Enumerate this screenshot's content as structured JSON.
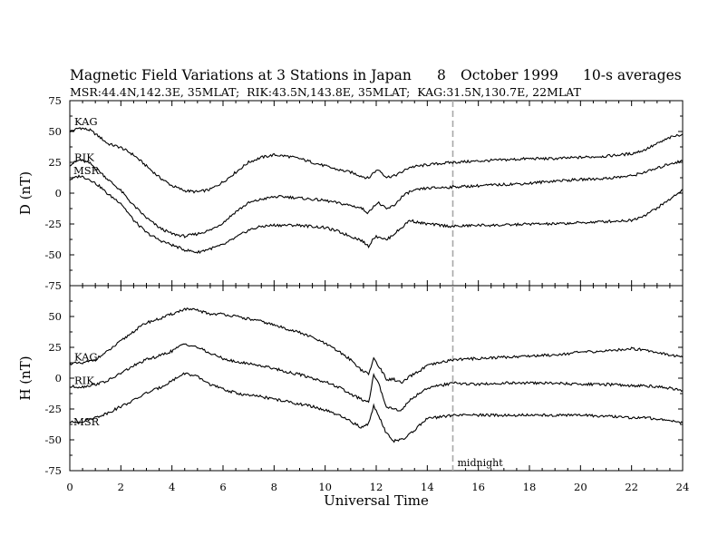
{
  "chart_data": {
    "type": "line",
    "title": {
      "main": "Magnetic Field Variations at 3 Stations in Japan",
      "day": "8",
      "month_year": "October 1999",
      "averaging": "10-s averages"
    },
    "subtitle": "MSR:44.4N,142.3E, 35MLAT;  RIK:43.5N,143.8E, 35MLAT;  KAG:31.5N,130.7E, 22MLAT",
    "xlabel": "Universal Time",
    "xlim": [
      0,
      24
    ],
    "xticks": [
      "0",
      "2",
      "4",
      "6",
      "8",
      "10",
      "12",
      "14",
      "16",
      "18",
      "20",
      "22",
      "24"
    ],
    "annotation": {
      "text": "midnight",
      "x": 15,
      "style": "dashed vertical line"
    },
    "grid": false,
    "color": "#000000",
    "panels": [
      {
        "ylabel": "D (nT)",
        "ylim": [
          -75,
          75
        ],
        "yticks": [
          "75",
          "50",
          "25",
          "0",
          "-25",
          "-50",
          "-75"
        ],
        "series": [
          {
            "name": "KAG",
            "x": [
              0,
              0.4,
              0.8,
              1.2,
              1.5,
              2,
              2.5,
              3,
              3.5,
              4,
              4.5,
              5,
              5.5,
              6,
              6.5,
              7,
              7.5,
              8,
              8.5,
              9,
              9.5,
              10,
              10.5,
              11,
              11.4,
              11.7,
              11.9,
              12.1,
              12.4,
              12.7,
              13,
              13.3,
              13.7,
              14,
              15,
              16,
              17,
              18,
              19,
              20,
              21,
              22,
              22.5,
              23,
              23.5,
              24
            ],
            "y": [
              50,
              53,
              51,
              45,
              40,
              37,
              31,
              22,
              13,
              6,
              2,
              1,
              3,
              9,
              17,
              25,
              29,
              31,
              30,
              28,
              25,
              22,
              19,
              17,
              14,
              12,
              17,
              19,
              13,
              14,
              17,
              21,
              22,
              23,
              25,
              26,
              27,
              28,
              28,
              29,
              30,
              32,
              35,
              40,
              45,
              48
            ]
          },
          {
            "name": "RIK",
            "x": [
              0,
              0.4,
              0.8,
              1.2,
              1.5,
              2,
              2.5,
              3,
              3.5,
              4,
              4.5,
              5,
              5.5,
              6,
              6.5,
              7,
              7.5,
              8,
              8.5,
              9,
              9.5,
              10,
              10.5,
              11,
              11.4,
              11.7,
              11.9,
              12.1,
              12.4,
              12.7,
              13,
              13.3,
              13.7,
              14,
              15,
              16,
              17,
              18,
              19,
              20,
              21,
              22,
              22.5,
              23,
              23.5,
              24
            ],
            "y": [
              23,
              27,
              24,
              17,
              11,
              2,
              -10,
              -20,
              -28,
              -33,
              -35,
              -33,
              -30,
              -24,
              -15,
              -8,
              -5,
              -3,
              -3,
              -4,
              -5,
              -6,
              -8,
              -10,
              -12,
              -16,
              -10,
              -8,
              -13,
              -10,
              -3,
              1,
              3,
              4,
              5,
              6,
              7,
              8,
              10,
              11,
              12,
              14,
              17,
              20,
              24,
              26
            ]
          },
          {
            "name": "MSR",
            "x": [
              0,
              0.4,
              0.8,
              1.2,
              1.5,
              2,
              2.5,
              3,
              3.5,
              4,
              4.5,
              5,
              5.5,
              6,
              6.5,
              7,
              7.5,
              8,
              8.5,
              9,
              9.5,
              10,
              10.5,
              11,
              11.4,
              11.7,
              11.9,
              12.1,
              12.4,
              12.7,
              13,
              13.3,
              13.7,
              14,
              15,
              16,
              17,
              18,
              19,
              20,
              21,
              22,
              22.5,
              23,
              23.5,
              24
            ],
            "y": [
              11,
              14,
              11,
              5,
              -1,
              -8,
              -22,
              -32,
              -38,
              -42,
              -46,
              -48,
              -45,
              -42,
              -36,
              -30,
              -27,
              -26,
              -26,
              -26,
              -27,
              -28,
              -31,
              -35,
              -38,
              -43,
              -36,
              -35,
              -38,
              -33,
              -28,
              -22,
              -24,
              -25,
              -27,
              -26,
              -26,
              -25,
              -25,
              -24,
              -23,
              -22,
              -18,
              -12,
              -5,
              3
            ]
          }
        ]
      },
      {
        "ylabel": "H (nT)",
        "ylim": [
          -75,
          75
        ],
        "yticks": [
          "75",
          "50",
          "25",
          "0",
          "-25",
          "-50",
          "-75"
        ],
        "series": [
          {
            "name": "KAG",
            "x": [
              0,
              0.5,
              1,
              1.5,
              2,
              2.5,
              3,
              3.5,
              4,
              4.5,
              5,
              5.5,
              6,
              6.5,
              7,
              7.5,
              8,
              8.5,
              9,
              9.5,
              10,
              10.5,
              11,
              11.4,
              11.7,
              11.9,
              12.1,
              12.4,
              12.7,
              13,
              13.3,
              13.7,
              14,
              15,
              16,
              17,
              18,
              19,
              20,
              21,
              22,
              22.5,
              23,
              23.5,
              24
            ],
            "y": [
              12,
              12,
              15,
              22,
              30,
              38,
              45,
              48,
              52,
              56,
              55,
              52,
              52,
              50,
              48,
              46,
              43,
              40,
              37,
              33,
              28,
              22,
              15,
              7,
              3,
              16,
              10,
              -1,
              -1,
              -4,
              1,
              6,
              10,
              15,
              16,
              17,
              18,
              19,
              21,
              22,
              24,
              23,
              21,
              19,
              17
            ]
          },
          {
            "name": "RIK",
            "x": [
              0,
              0.5,
              1,
              1.5,
              2,
              2.5,
              3,
              3.5,
              4,
              4.5,
              5,
              5.5,
              6,
              6.5,
              7,
              7.5,
              8,
              8.5,
              9,
              9.5,
              10,
              10.5,
              11,
              11.4,
              11.7,
              11.9,
              12.1,
              12.4,
              12.7,
              13,
              13.3,
              13.7,
              14,
              15,
              16,
              17,
              18,
              19,
              20,
              21,
              22,
              22.5,
              23,
              23.5,
              24
            ],
            "y": [
              -7,
              -7,
              -5,
              -2,
              4,
              10,
              15,
              18,
              22,
              28,
              25,
              20,
              16,
              13,
              12,
              10,
              8,
              5,
              3,
              0,
              -3,
              -7,
              -13,
              -17,
              -20,
              3,
              -5,
              -23,
              -25,
              -26,
              -18,
              -12,
              -8,
              -4,
              -5,
              -4,
              -4,
              -4,
              -5,
              -5,
              -6,
              -6,
              -7,
              -8,
              -10
            ]
          },
          {
            "name": "MSR",
            "x": [
              0,
              0.5,
              1,
              1.5,
              2,
              2.5,
              3,
              3.5,
              4,
              4.5,
              5,
              5.5,
              6,
              6.5,
              7,
              7.5,
              8,
              8.5,
              9,
              9.5,
              10,
              10.5,
              11,
              11.4,
              11.7,
              11.9,
              12.1,
              12.4,
              12.7,
              13,
              13.3,
              13.7,
              14,
              15,
              16,
              17,
              18,
              19,
              20,
              21,
              22,
              22.5,
              23,
              23.5,
              24
            ],
            "y": [
              -36,
              -35,
              -32,
              -28,
              -23,
              -18,
              -12,
              -8,
              -2,
              4,
              1,
              -5,
              -9,
              -12,
              -14,
              -15,
              -17,
              -19,
              -21,
              -23,
              -26,
              -30,
              -35,
              -40,
              -37,
              -22,
              -30,
              -45,
              -51,
              -50,
              -46,
              -38,
              -33,
              -30,
              -30,
              -30,
              -30,
              -30,
              -30,
              -31,
              -32,
              -32,
              -33,
              -34,
              -36
            ]
          }
        ]
      }
    ]
  }
}
